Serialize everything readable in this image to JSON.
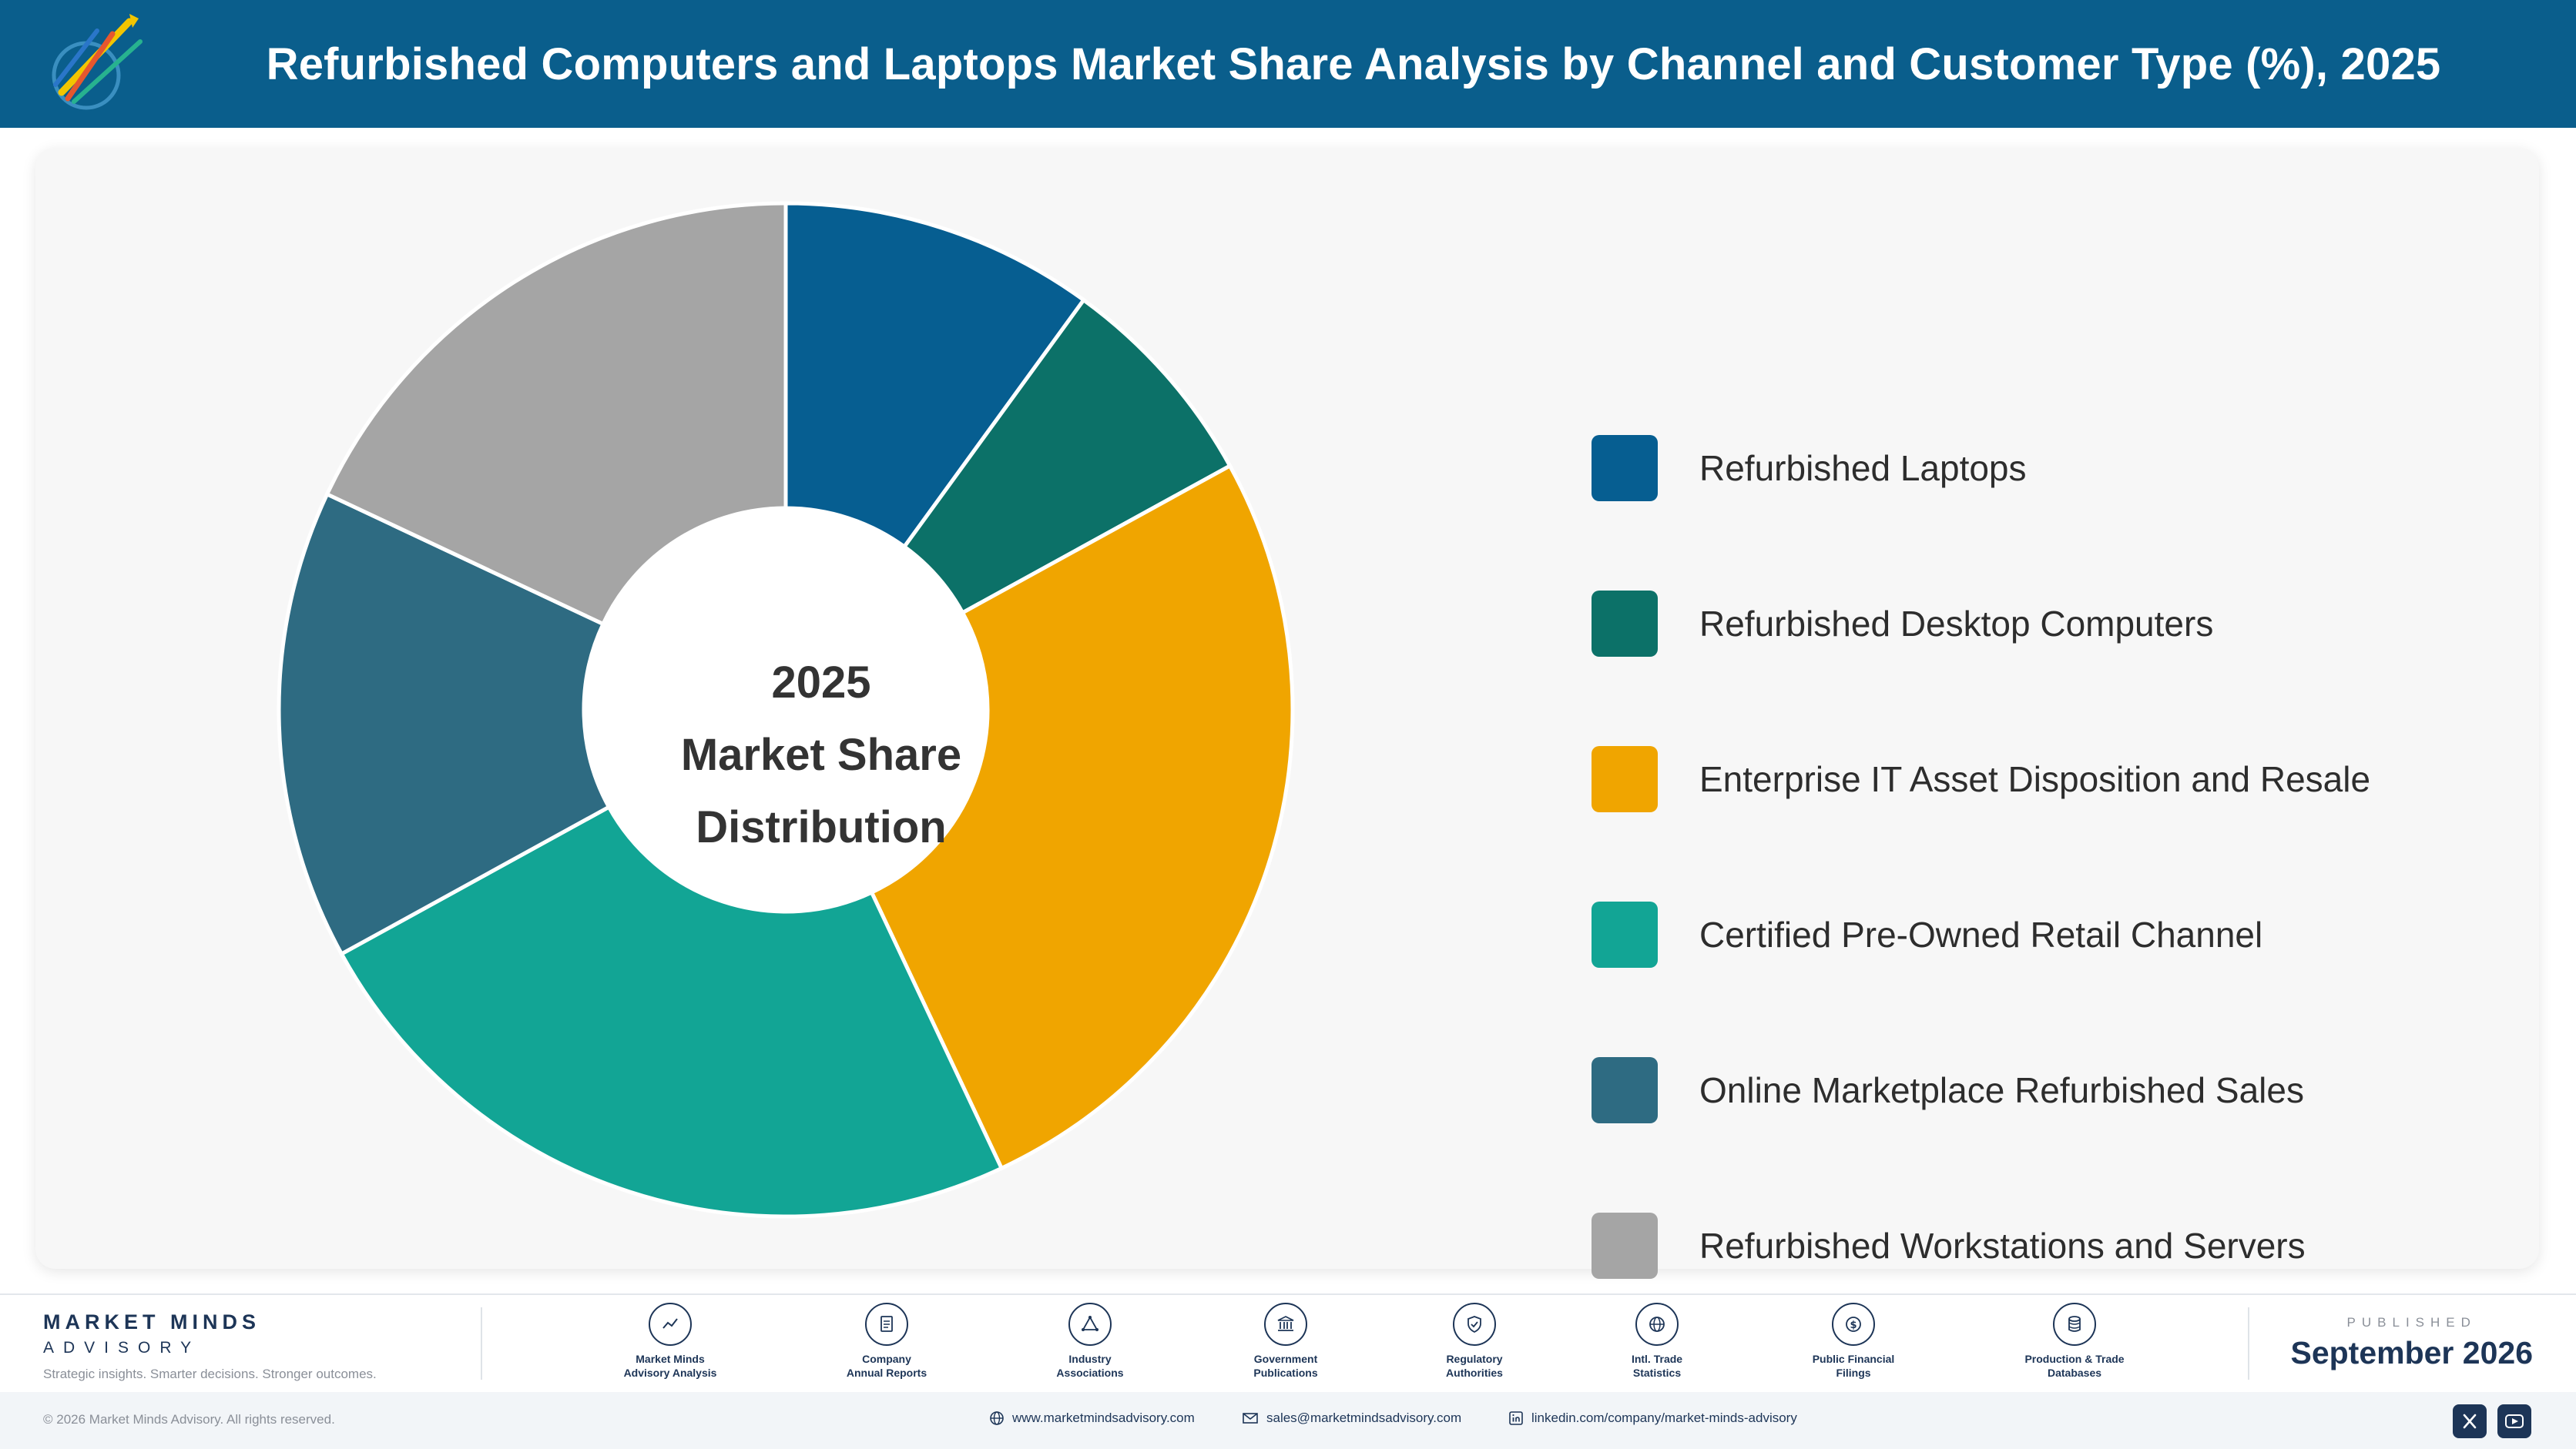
{
  "header": {
    "title": "Refurbished Computers and Laptops Market Share Analysis by Channel and Customer Type (%), 2025"
  },
  "center_label": {
    "line1": "2025",
    "line2": "Market Share",
    "line3": "Distribution"
  },
  "chart_data": {
    "type": "pie",
    "style": "donut",
    "title": "Refurbished Computers and Laptops Market Share Analysis by Channel and Customer Type (%), 2025",
    "categories": [
      "Refurbished Laptops",
      "Refurbished Desktop Computers",
      "Enterprise IT Asset Disposition and Resale",
      "Certified Pre-Owned Retail Channel",
      "Online Marketplace Refurbished Sales",
      "Refurbished Workstations and Servers"
    ],
    "values": [
      10,
      7,
      26,
      24,
      15,
      18
    ],
    "colors": [
      "#065e91",
      "#0c7168",
      "#f0a500",
      "#12a595",
      "#2e6b82",
      "#a5a5a5"
    ],
    "legend_position": "right",
    "grid": false
  },
  "footer": {
    "brand_name": "MARKET MINDS",
    "brand_sub": "ADVISORY",
    "brand_tagline": "Strategic insights. Smarter decisions. Stronger outcomes.",
    "sources": [
      {
        "label": "Market Minds\nAdvisory Analysis",
        "icon": "chart-line-icon"
      },
      {
        "label": "Company\nAnnual Reports",
        "icon": "document-icon"
      },
      {
        "label": "Industry\nAssociations",
        "icon": "network-icon"
      },
      {
        "label": "Government\nPublications",
        "icon": "government-building-icon"
      },
      {
        "label": "Regulatory\nAuthorities",
        "icon": "shield-check-icon"
      },
      {
        "label": "Intl. Trade\nStatistics",
        "icon": "globe-icon"
      },
      {
        "label": "Public Financial\nFilings",
        "icon": "dollar-coin-icon"
      },
      {
        "label": "Production & Trade\nDatabases",
        "icon": "database-icon"
      }
    ],
    "published_label": "PUBLISHED",
    "published_date": "September 2026",
    "copyright": "© 2026 Market Minds Advisory. All rights reserved.",
    "website": "www.marketmindsadvisory.com",
    "email": "sales@marketmindsadvisory.com",
    "linkedin": "linkedin.com/company/market-minds-advisory"
  }
}
